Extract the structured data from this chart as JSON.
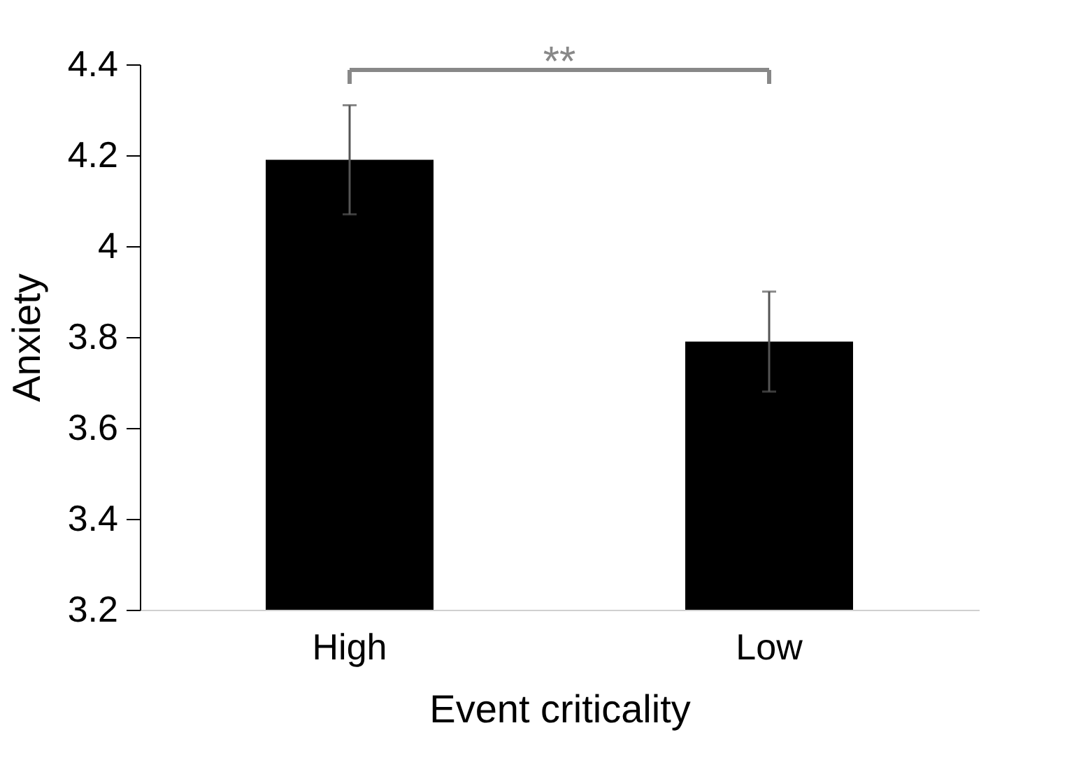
{
  "chart_data": {
    "type": "bar",
    "xlabel": "Event criticality",
    "ylabel": "Anxiety",
    "categories": [
      "High",
      "Low"
    ],
    "values": [
      4.19,
      3.79
    ],
    "errors": [
      0.12,
      0.11
    ],
    "color": "#000000",
    "ylim": [
      3.2,
      4.4
    ],
    "yticks": [
      3.2,
      3.4,
      3.6,
      3.8,
      4,
      4.2,
      4.4
    ],
    "grid": false,
    "annotations": [
      "**"
    ]
  }
}
